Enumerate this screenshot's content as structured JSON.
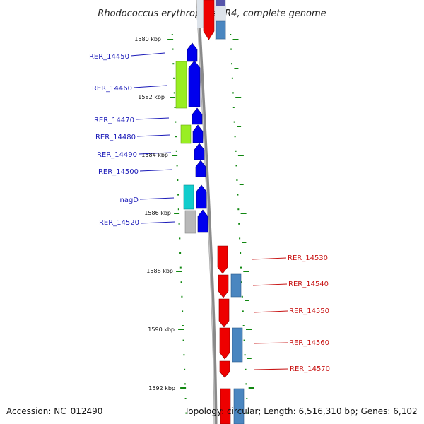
{
  "title": "Rhodococcus erythropolis PR4, complete genome",
  "footer": {
    "accession": "Accession: NC_012490",
    "topology": "Topology: circular; Length: 6,516,310 bp; Genes: 6,102"
  },
  "scale": {
    "unit": "kbp",
    "ticks": [
      {
        "kbp": 1580,
        "label": "1580 kbp"
      },
      {
        "kbp": 1582,
        "label": "1582 kbp"
      },
      {
        "kbp": 1584,
        "label": "1584 kbp"
      },
      {
        "kbp": 1586,
        "label": "1586 kbp"
      },
      {
        "kbp": 1588,
        "label": "1588 kbp"
      },
      {
        "kbp": 1590,
        "label": "1590 kbp"
      },
      {
        "kbp": 1592,
        "label": "1592 kbp"
      }
    ]
  },
  "colors": {
    "cds_forward": "#0000ee",
    "cds_reverse": "#ee0000",
    "feature_lime": "#99ee22",
    "feature_cyan": "#11cccc",
    "feature_gray": "#b8b8b8",
    "feature_steel": "#4a86c0",
    "backbone": "#8a8a8a",
    "tick_green": "#118811"
  },
  "genes_forward": [
    {
      "name": "RER_14450",
      "label": "RER_14450"
    },
    {
      "name": "RER_14460",
      "label": "RER_14460"
    },
    {
      "name": "RER_14470",
      "label": "RER_14470"
    },
    {
      "name": "RER_14480",
      "label": "RER_14480"
    },
    {
      "name": "RER_14490",
      "label": "RER_14490"
    },
    {
      "name": "RER_14500",
      "label": "RER_14500"
    },
    {
      "name": "nagD",
      "label": "nagD"
    },
    {
      "name": "RER_14520",
      "label": "RER_14520"
    }
  ],
  "genes_reverse": [
    {
      "name": "RER_14530",
      "label": "RER_14530"
    },
    {
      "name": "RER_14540",
      "label": "RER_14540"
    },
    {
      "name": "RER_14550",
      "label": "RER_14550"
    },
    {
      "name": "RER_14560",
      "label": "RER_14560"
    },
    {
      "name": "RER_14570",
      "label": "RER_14570"
    }
  ]
}
